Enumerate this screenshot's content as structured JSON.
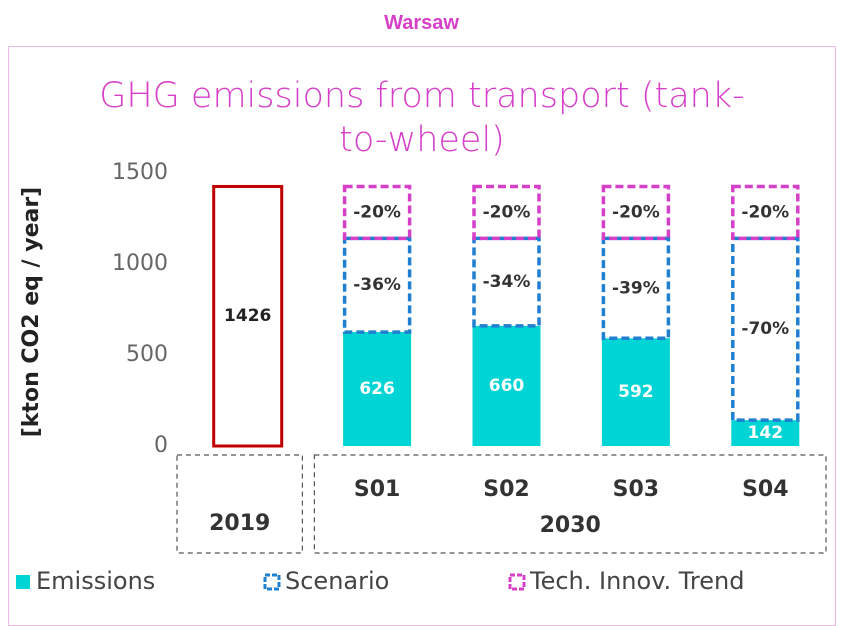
{
  "page_title": "Warsaw",
  "chart_data": {
    "type": "bar",
    "title": "GHG emissions from transport (tank-to-wheel)",
    "y_label": "[kton CO2 eq / year]",
    "categories": [
      null,
      "S01",
      "S02",
      "S03",
      "S04"
    ],
    "groups": [
      {
        "name": "2019",
        "count": 1
      },
      {
        "name": "2030",
        "count": 4
      }
    ],
    "ylim": [
      0,
      1500
    ],
    "yticks": [
      0,
      500,
      1000,
      1500
    ],
    "baseline": {
      "values": [
        1426,
        null,
        null,
        null,
        null
      ],
      "color": "#c00000"
    },
    "series": [
      {
        "name": "Emissions",
        "color": "#00d4d4",
        "style": "fill",
        "values": [
          null,
          626,
          660,
          592,
          142
        ]
      },
      {
        "name": "Scenario",
        "color": "#1f7fd0",
        "style": "dashed",
        "values": [
          null,
          515,
          481,
          549,
          999
        ],
        "annotations": [
          null,
          "-36%",
          "-34%",
          "-39%",
          "-70%"
        ]
      },
      {
        "name": "Tech. Innov. Trend",
        "color": "#d63fc8",
        "style": "dashed",
        "values": [
          null,
          285,
          285,
          285,
          285
        ],
        "annotations": [
          null,
          "-20%",
          "-20%",
          "-20%",
          "-20%"
        ]
      }
    ]
  }
}
